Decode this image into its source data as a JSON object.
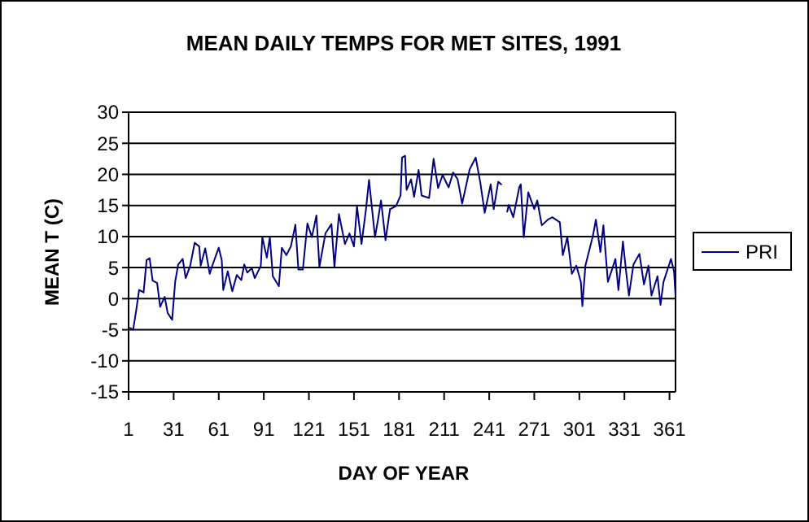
{
  "chart_data": {
    "type": "line",
    "title": "MEAN DAILY TEMPS FOR MET SITES, 1991",
    "xlabel": "DAY OF YEAR",
    "ylabel": "MEAN T (C)",
    "xlim": [
      1,
      365
    ],
    "xticks": [
      1,
      31,
      61,
      91,
      121,
      151,
      181,
      211,
      241,
      271,
      301,
      331,
      361
    ],
    "ylim": [
      -15,
      30
    ],
    "yticks": [
      -15,
      -10,
      -5,
      0,
      5,
      10,
      15,
      20,
      25,
      30
    ],
    "grid": "y",
    "legend": "right",
    "marker": "none",
    "line_style": "solid",
    "series": [
      {
        "name": "PRI",
        "color": "#000080",
        "x": [
          2,
          4,
          6,
          8,
          11,
          13,
          15,
          17,
          20,
          22,
          25,
          27,
          30,
          32,
          34,
          37,
          39,
          42,
          45,
          48,
          49,
          52,
          55,
          57,
          61,
          63,
          64,
          67,
          70,
          73,
          76,
          78,
          80,
          83,
          85,
          89,
          90,
          93,
          95,
          97,
          101,
          103,
          106,
          109,
          112,
          114,
          117,
          120,
          123,
          126,
          128,
          132,
          136,
          138,
          141,
          145,
          148,
          151,
          153,
          156,
          159,
          161,
          165,
          167,
          169,
          172,
          175,
          179,
          182,
          183,
          185,
          186,
          189,
          191,
          194,
          196,
          201,
          204,
          207,
          210,
          214,
          217,
          220,
          223,
          228,
          232,
          235,
          238,
          242,
          244,
          247,
          249,
          251,
          253,
          254,
          257,
          261,
          262,
          264,
          267,
          271,
          273,
          276,
          280,
          283,
          288,
          290,
          293,
          296,
          299,
          302,
          303,
          305,
          310,
          312,
          315,
          317,
          320,
          323,
          325,
          327,
          330,
          332,
          334,
          337,
          341,
          344,
          347,
          349,
          353,
          355,
          357,
          362,
          364,
          365
        ],
        "values": [
          -4.7,
          -5,
          -2,
          1.4,
          1,
          6.2,
          6.5,
          2.9,
          2.5,
          -1.3,
          0.3,
          -2.3,
          -3.4,
          2.7,
          5.5,
          6.4,
          3.3,
          5.3,
          9,
          8.4,
          5.3,
          8.1,
          4,
          5.5,
          8.2,
          6.2,
          1.4,
          4.4,
          1.2,
          3.8,
          3,
          5.5,
          4.2,
          4.9,
          3.3,
          5.3,
          9.9,
          6.6,
          9.9,
          3.6,
          2,
          8.2,
          7,
          8.4,
          11.9,
          4.7,
          4.7,
          12.1,
          9.9,
          13.4,
          5.1,
          10.5,
          12,
          5.1,
          13.6,
          8.8,
          10.5,
          8.4,
          14.9,
          8.8,
          14.4,
          19.1,
          9.9,
          12.7,
          15.8,
          9.4,
          14.4,
          14.9,
          16.6,
          22.7,
          23,
          17.5,
          19.2,
          16.4,
          20.7,
          16.6,
          16.2,
          22.5,
          17.8,
          19.9,
          17.9,
          20.3,
          19.2,
          15.3,
          20.8,
          22.7,
          18.8,
          13.8,
          18.4,
          14.4,
          18.8,
          18.4,
          null,
          14,
          15.1,
          13.1,
          17.9,
          18.4,
          9.9,
          17.1,
          14.4,
          15.8,
          11.8,
          12.7,
          13.1,
          12.3,
          7,
          9.9,
          4,
          5.3,
          2.7,
          -1.2,
          5.3,
          10.1,
          12.7,
          7.5,
          11.8,
          2.7,
          4.9,
          6.4,
          1.4,
          9.2,
          4.6,
          0.5,
          5.5,
          7.2,
          2.3,
          5.3,
          0.5,
          3.6,
          -1,
          2.7,
          6.4,
          4.4,
          0.5
        ]
      }
    ]
  }
}
